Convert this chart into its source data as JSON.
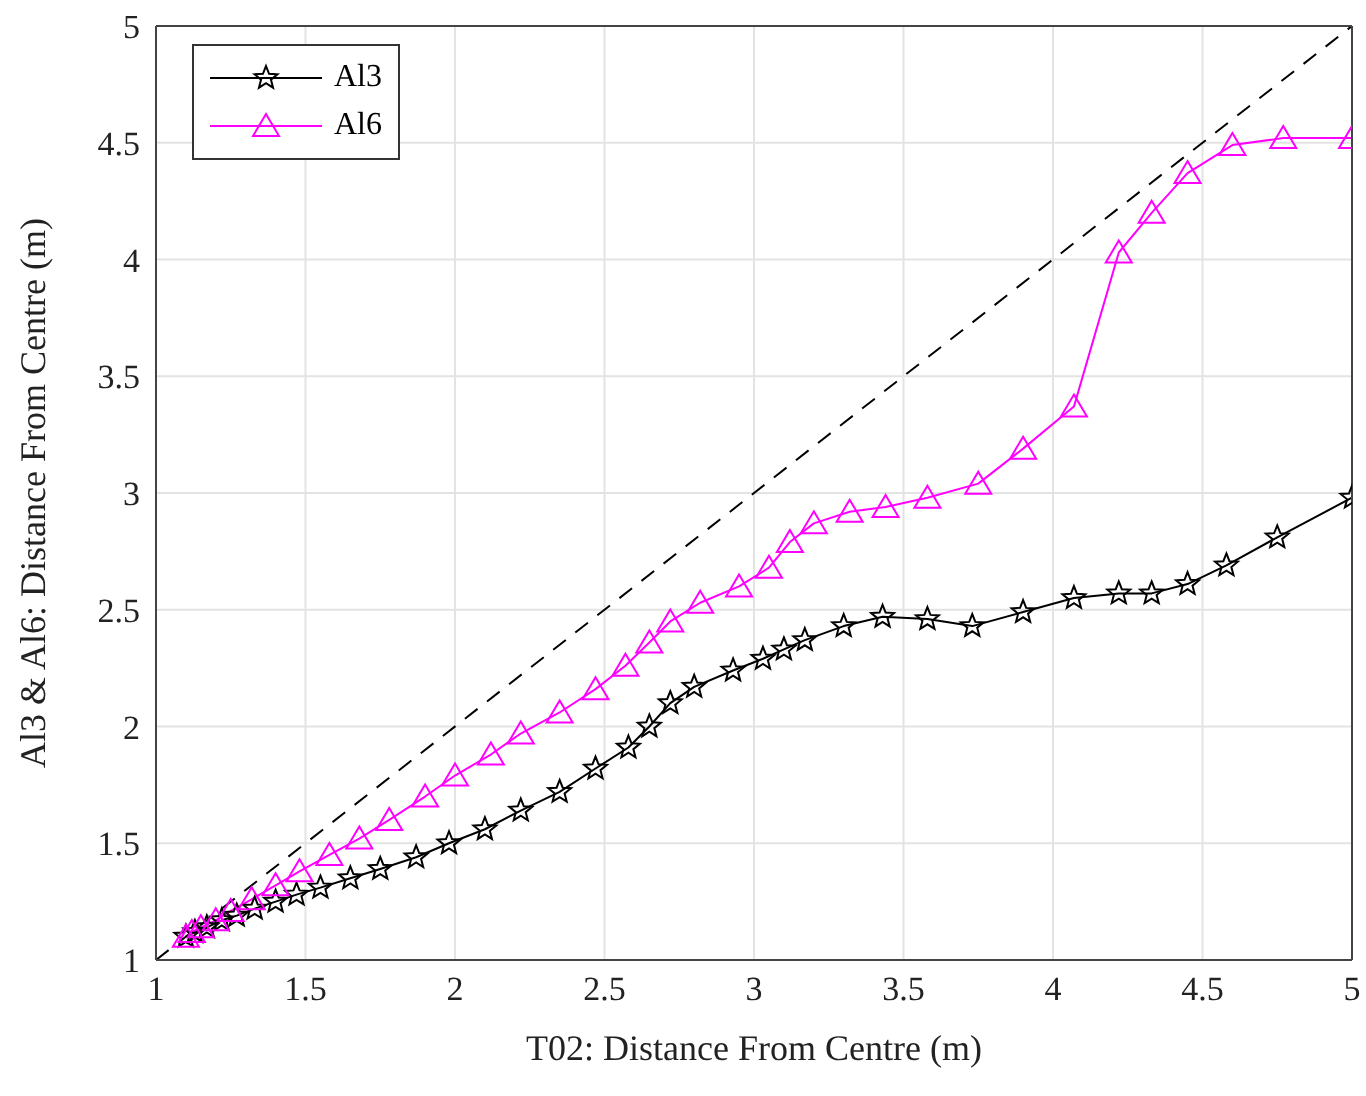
{
  "chart_data": {
    "type": "line",
    "xlabel": "T02: Distance From Centre (m)",
    "ylabel": "Al3 & Al6: Distance From Centre (m)",
    "xlim": [
      1,
      5
    ],
    "xticks": [
      1,
      1.5,
      2,
      2.5,
      3,
      3.5,
      4,
      4.5,
      5
    ],
    "ylim": [
      1,
      5
    ],
    "yticks": [
      1,
      1.5,
      2,
      2.5,
      3,
      3.5,
      4,
      4.5,
      5
    ],
    "grid": true,
    "legend": "top left",
    "series": [
      {
        "name": "Al3",
        "color": "#000000",
        "marker": "star",
        "line_style": "solid",
        "x": [
          1.1,
          1.13,
          1.17,
          1.22,
          1.27,
          1.33,
          1.4,
          1.47,
          1.55,
          1.65,
          1.75,
          1.87,
          1.98,
          2.1,
          2.22,
          2.35,
          2.47,
          2.58,
          2.65,
          2.72,
          2.8,
          2.93,
          3.03,
          3.1,
          3.17,
          3.3,
          3.43,
          3.58,
          3.73,
          3.9,
          4.07,
          4.22,
          4.33,
          4.45,
          4.58,
          4.75,
          5
        ],
        "values": [
          1.1,
          1.12,
          1.14,
          1.17,
          1.19,
          1.22,
          1.25,
          1.28,
          1.31,
          1.35,
          1.39,
          1.44,
          1.5,
          1.56,
          1.64,
          1.72,
          1.82,
          1.91,
          2.0,
          2.1,
          2.17,
          2.24,
          2.29,
          2.33,
          2.37,
          2.43,
          2.47,
          2.46,
          2.43,
          2.49,
          2.55,
          2.57,
          2.57,
          2.61,
          2.69,
          2.81,
          2.98
        ]
      },
      {
        "name": "Al6",
        "color": "#ff00ff",
        "marker": "triangle",
        "line_style": "solid",
        "x": [
          1.1,
          1.12,
          1.15,
          1.2,
          1.25,
          1.32,
          1.4,
          1.48,
          1.58,
          1.68,
          1.78,
          1.9,
          2.0,
          2.12,
          2.22,
          2.35,
          2.47,
          2.57,
          2.65,
          2.72,
          2.82,
          2.95,
          3.05,
          3.12,
          3.2,
          3.32,
          3.44,
          3.58,
          3.75,
          3.9,
          4.07,
          4.22,
          4.33,
          4.45,
          4.6,
          4.77,
          5
        ],
        "values": [
          1.1,
          1.12,
          1.14,
          1.17,
          1.21,
          1.26,
          1.32,
          1.38,
          1.45,
          1.52,
          1.6,
          1.7,
          1.79,
          1.88,
          1.97,
          2.06,
          2.16,
          2.26,
          2.36,
          2.45,
          2.53,
          2.6,
          2.68,
          2.79,
          2.87,
          2.92,
          2.94,
          2.98,
          3.04,
          3.19,
          3.37,
          4.03,
          4.2,
          4.37,
          4.49,
          4.52,
          4.52
        ]
      },
      {
        "color": "#000000",
        "marker": "none",
        "line_style": "dashed",
        "x": [
          1,
          5
        ],
        "values": [
          1,
          5
        ]
      }
    ]
  }
}
